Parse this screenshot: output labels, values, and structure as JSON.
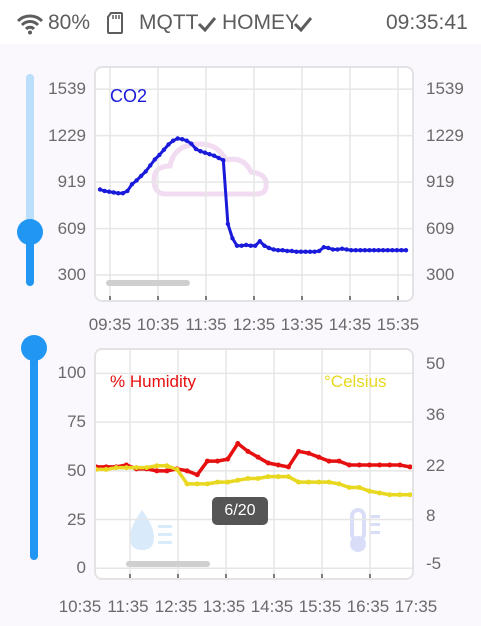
{
  "status_bar": {
    "battery": "80%",
    "mqtt_label": "MQTT",
    "homey_label": "HOMEY",
    "time": "09:35:41",
    "icons": [
      "wifi-icon",
      "sd-card-icon",
      "check-icon",
      "check-icon"
    ]
  },
  "toast": {
    "text": "6/20"
  },
  "colors": {
    "co2": "#1a1adb",
    "humidity": "#e61010",
    "celsius": "#e8d820",
    "slider": "#2196f3"
  },
  "chart_data": [
    {
      "type": "line",
      "series": [
        {
          "name": "CO2",
          "x": [
            0,
            0.1,
            0.2,
            0.3,
            0.4,
            0.5,
            0.6,
            0.7,
            0.8,
            0.9,
            1.0,
            1.1,
            1.2,
            1.3,
            1.4,
            1.5,
            1.6,
            1.7,
            1.8,
            1.9,
            2.0,
            2.1,
            2.2,
            2.3,
            2.4,
            2.5,
            2.6,
            2.7,
            2.8,
            2.9,
            3.0,
            3.1,
            3.2,
            3.3,
            3.4,
            3.5,
            3.6,
            3.7,
            3.8,
            3.9,
            4.0,
            4.1,
            4.2,
            4.3,
            4.4,
            4.5,
            4.6,
            4.7,
            4.8,
            4.9,
            5.0,
            5.1,
            5.2,
            5.3,
            5.4,
            5.5,
            5.6,
            5.7,
            5.8,
            5.9,
            6.0,
            6.1,
            6.2,
            6.3,
            6.4,
            6.5,
            6.6,
            6.7
          ],
          "values": [
            870,
            860,
            855,
            850,
            845,
            845,
            860,
            905,
            930,
            960,
            990,
            1030,
            1070,
            1100,
            1135,
            1170,
            1195,
            1210,
            1205,
            1195,
            1175,
            1140,
            1125,
            1115,
            1105,
            1095,
            1080,
            1065,
            640,
            545,
            495,
            495,
            500,
            495,
            495,
            525,
            495,
            480,
            470,
            465,
            465,
            460,
            460,
            455,
            455,
            455,
            455,
            455,
            460,
            485,
            480,
            470,
            470,
            475,
            470,
            465,
            465,
            465,
            465,
            465,
            465,
            465,
            465,
            465,
            465,
            465,
            465,
            465
          ]
        }
      ],
      "x_tick_labels": [
        "09:35",
        "10:35",
        "11:35",
        "12:35",
        "13:35",
        "14:35",
        "15:35"
      ],
      "y_ticks_left": [
        300,
        609,
        919,
        1229,
        1539
      ],
      "y_ticks_right": [
        300,
        609,
        919,
        1229,
        1539
      ],
      "ylim": [
        200,
        1640
      ],
      "grid": true
    },
    {
      "type": "line",
      "series": [
        {
          "name": "% Humidity",
          "axis": "left",
          "x": [
            0,
            0.3,
            0.6,
            0.9,
            1.2,
            1.5,
            1.8,
            2.1,
            2.4,
            2.7,
            3.0,
            3.3,
            3.6,
            3.9,
            4.2,
            4.5,
            4.8,
            5.1,
            5.4,
            5.7,
            6.0,
            6.3,
            6.6,
            6.9,
            7.2,
            7.5,
            7.8,
            8.1,
            8.4,
            8.7,
            9.0,
            9.3
          ],
          "values": [
            52,
            52,
            52,
            53,
            51,
            51,
            50,
            50,
            51,
            50,
            48,
            55,
            55,
            56,
            64,
            60,
            57,
            54,
            53,
            52,
            60,
            59,
            57,
            55,
            55,
            53,
            53,
            53,
            53,
            53,
            53,
            52
          ]
        },
        {
          "name": "°Celsius",
          "axis": "right",
          "x": [
            0,
            0.3,
            0.6,
            0.9,
            1.2,
            1.5,
            1.8,
            2.1,
            2.4,
            2.7,
            3.0,
            3.3,
            3.6,
            3.9,
            4.2,
            4.5,
            4.8,
            5.1,
            5.4,
            5.7,
            6.0,
            6.3,
            6.6,
            6.9,
            7.2,
            7.5,
            7.8,
            8.1,
            8.4,
            8.7,
            9.0,
            9.3
          ],
          "values": [
            21,
            21,
            21.5,
            21.5,
            21.5,
            21.5,
            22,
            22,
            21,
            17,
            17,
            17,
            17.5,
            17.5,
            18,
            18.5,
            18.5,
            19,
            19,
            19,
            17.5,
            17.5,
            17.5,
            17.5,
            17,
            16,
            16,
            15,
            14.5,
            14,
            14,
            14
          ]
        }
      ],
      "x_tick_labels": [
        "10:35",
        "11:35",
        "12:35",
        "13:35",
        "14:35",
        "15:35",
        "16:35",
        "17:35"
      ],
      "y_ticks_left": [
        0,
        25,
        50,
        75,
        100
      ],
      "y_ticks_right": [
        "-5",
        "8",
        "22",
        "36",
        "50"
      ],
      "ylim_left": [
        -5,
        112
      ],
      "ylim_right": [
        -9,
        54
      ],
      "grid": true
    }
  ]
}
